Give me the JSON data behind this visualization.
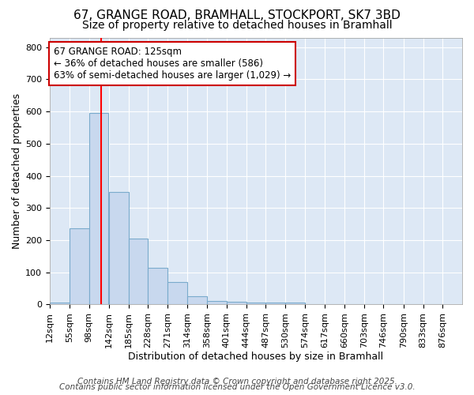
{
  "title": "67, GRANGE ROAD, BRAMHALL, STOCKPORT, SK7 3BD",
  "subtitle": "Size of property relative to detached houses in Bramhall",
  "xlabel": "Distribution of detached houses by size in Bramhall",
  "ylabel": "Number of detached properties",
  "bin_labels": [
    "12sqm",
    "55sqm",
    "98sqm",
    "142sqm",
    "185sqm",
    "228sqm",
    "271sqm",
    "314sqm",
    "358sqm",
    "401sqm",
    "444sqm",
    "487sqm",
    "530sqm",
    "574sqm",
    "617sqm",
    "660sqm",
    "703sqm",
    "746sqm",
    "790sqm",
    "833sqm",
    "876sqm"
  ],
  "bin_edges": [
    12,
    55,
    98,
    142,
    185,
    228,
    271,
    314,
    358,
    401,
    444,
    487,
    530,
    574,
    617,
    660,
    703,
    746,
    790,
    833,
    876
  ],
  "bar_heights": [
    5,
    237,
    595,
    350,
    205,
    115,
    70,
    25,
    12,
    8,
    5,
    5,
    7,
    0,
    0,
    0,
    0,
    0,
    0,
    0
  ],
  "bar_color": "#c8d8ee",
  "bar_edge_color": "#7aabcc",
  "red_line_x": 125,
  "ylim": [
    0,
    830
  ],
  "yticks": [
    0,
    100,
    200,
    300,
    400,
    500,
    600,
    700,
    800
  ],
  "annotation_title": "67 GRANGE ROAD: 125sqm",
  "annotation_line1": "← 36% of detached houses are smaller (586)",
  "annotation_line2": "63% of semi-detached houses are larger (1,029) →",
  "annotation_box_color": "#ffffff",
  "annotation_box_edge": "#cc0000",
  "footer1": "Contains HM Land Registry data © Crown copyright and database right 2025.",
  "footer2": "Contains public sector information licensed under the Open Government Licence v3.0.",
  "fig_background": "#ffffff",
  "plot_background": "#dde8f5",
  "grid_color": "#ffffff",
  "title_fontsize": 11,
  "subtitle_fontsize": 10,
  "axis_label_fontsize": 9,
  "tick_fontsize": 8,
  "annotation_fontsize": 8.5,
  "footer_fontsize": 7.5
}
